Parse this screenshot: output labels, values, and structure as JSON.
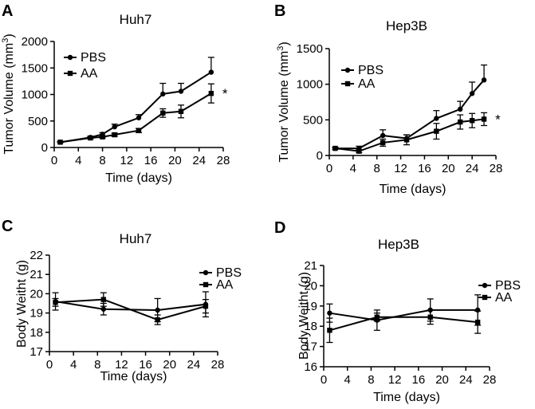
{
  "chart_data": [
    {
      "type": "line",
      "panel": "A",
      "title": "Huh7",
      "xlabel": "Time (days)",
      "ylabel_parts": [
        "Tumor Volume (mm",
        "3",
        ")"
      ],
      "xlim": [
        0,
        28
      ],
      "ylim": [
        0,
        2000
      ],
      "xticks": [
        0,
        4,
        8,
        12,
        16,
        20,
        24,
        28
      ],
      "yticks": [
        0,
        500,
        1000,
        1500,
        2000
      ],
      "significance": "*",
      "legend_position": "top-left",
      "series": [
        {
          "name": "PBS",
          "marker": "circle",
          "x": [
            1,
            6,
            8,
            10,
            14,
            18,
            21,
            26
          ],
          "y": [
            100,
            190,
            250,
            390,
            560,
            1010,
            1060,
            1420
          ],
          "err": [
            15,
            20,
            30,
            50,
            60,
            200,
            150,
            280
          ]
        },
        {
          "name": "AA",
          "marker": "square",
          "x": [
            1,
            6,
            8,
            10,
            14,
            18,
            21,
            26
          ],
          "y": [
            100,
            180,
            200,
            240,
            320,
            650,
            680,
            1020
          ],
          "err": [
            10,
            15,
            20,
            30,
            40,
            80,
            120,
            180
          ]
        }
      ]
    },
    {
      "type": "line",
      "panel": "B",
      "title": "Hep3B",
      "xlabel": "Time (days)",
      "ylabel_parts": [
        "Tumor Volume (mm",
        "3",
        ")"
      ],
      "xlim": [
        0,
        28
      ],
      "ylim": [
        0,
        1500
      ],
      "xticks": [
        0,
        4,
        8,
        12,
        16,
        20,
        24,
        28
      ],
      "yticks": [
        0,
        500,
        1000,
        1500
      ],
      "significance": "*",
      "legend_position": "top-left",
      "series": [
        {
          "name": "PBS",
          "marker": "circle",
          "x": [
            1,
            5,
            9,
            13,
            18,
            22,
            24,
            26
          ],
          "y": [
            100,
            100,
            280,
            240,
            520,
            650,
            870,
            1060
          ],
          "err": [
            15,
            30,
            80,
            50,
            110,
            110,
            160,
            210
          ]
        },
        {
          "name": "AA",
          "marker": "square",
          "x": [
            1,
            5,
            9,
            13,
            18,
            22,
            24,
            26
          ],
          "y": [
            100,
            60,
            180,
            220,
            340,
            470,
            490,
            510
          ],
          "err": [
            15,
            20,
            50,
            70,
            110,
            100,
            100,
            90
          ]
        }
      ]
    },
    {
      "type": "line",
      "panel": "C",
      "title": "Huh7",
      "xlabel": "Time (days)",
      "ylabel_parts": [
        "Body Weitht (g)"
      ],
      "xlim": [
        0,
        28
      ],
      "ylim": [
        17,
        22
      ],
      "xticks": [
        0,
        4,
        8,
        12,
        16,
        20,
        24,
        28
      ],
      "yticks": [
        17,
        18,
        19,
        20,
        21,
        22
      ],
      "significance": "",
      "legend_position": "right",
      "series": [
        {
          "name": "PBS",
          "marker": "circle",
          "x": [
            1,
            9,
            18,
            26
          ],
          "y": [
            19.6,
            19.2,
            19.15,
            19.45
          ],
          "err": [
            0.45,
            0.3,
            0.6,
            0.65
          ]
        },
        {
          "name": "AA",
          "marker": "square",
          "x": [
            1,
            9,
            18,
            26
          ],
          "y": [
            19.55,
            19.7,
            18.65,
            19.35
          ],
          "err": [
            0.2,
            0.35,
            0.25,
            0.35
          ]
        }
      ]
    },
    {
      "type": "line",
      "panel": "D",
      "title": "Hep3B",
      "xlabel": "Time (days)",
      "ylabel_parts": [
        "Body Weitht (g)"
      ],
      "xlim": [
        0,
        28
      ],
      "ylim": [
        16,
        21
      ],
      "xticks": [
        0,
        4,
        8,
        12,
        16,
        20,
        24,
        28
      ],
      "yticks": [
        16,
        17,
        18,
        19,
        20,
        21
      ],
      "significance": "",
      "legend_position": "right",
      "series": [
        {
          "name": "PBS",
          "marker": "circle",
          "x": [
            1,
            9,
            18,
            26
          ],
          "y": [
            18.65,
            18.3,
            18.8,
            18.8
          ],
          "err": [
            0.45,
            0.5,
            0.55,
            0.75
          ]
        },
        {
          "name": "AA",
          "marker": "square",
          "x": [
            1,
            9,
            18,
            26
          ],
          "y": [
            17.8,
            18.45,
            18.45,
            18.2
          ],
          "err": [
            0.6,
            0.2,
            0.35,
            0.55
          ]
        }
      ]
    }
  ]
}
